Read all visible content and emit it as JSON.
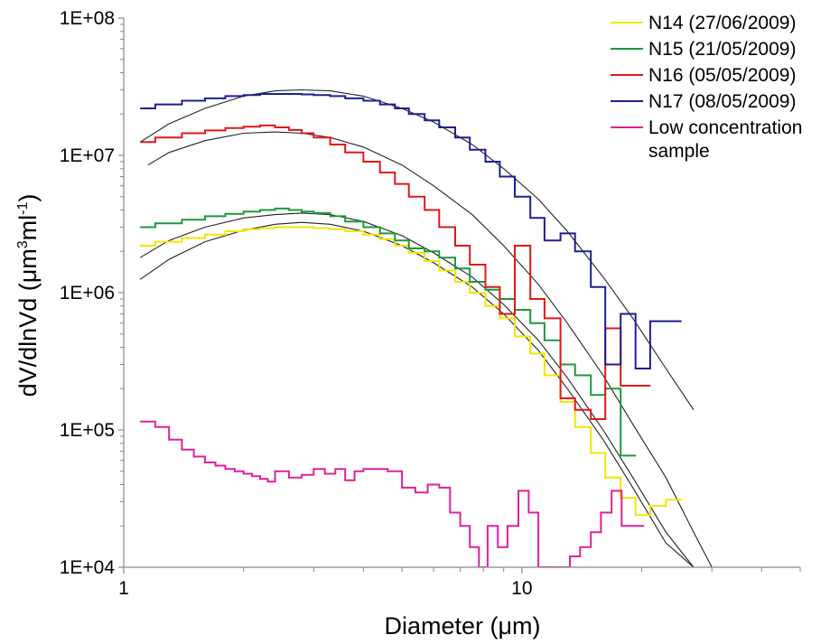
{
  "chart_data": {
    "type": "line",
    "xscale": "log",
    "yscale": "log",
    "xlim": [
      1,
      50
    ],
    "ylim": [
      10000,
      100000000
    ],
    "grid": false,
    "legend_position": "top-right",
    "xlabel": "Diameter (μm)",
    "ylabel_main": "dV/dlnVd (μm",
    "ylabel_sup1": "3",
    "ylabel_mid": "ml",
    "ylabel_sup2": "-1",
    "ylabel_end": ")",
    "x_ticks": [
      {
        "value": 1,
        "label": "1"
      },
      {
        "value": 10,
        "label": "10"
      }
    ],
    "y_ticks": [
      {
        "value": 10000,
        "label": "1E+04"
      },
      {
        "value": 100000,
        "label": "1E+05"
      },
      {
        "value": 1000000,
        "label": "1E+06"
      },
      {
        "value": 10000000,
        "label": "1E+07"
      },
      {
        "value": 100000000,
        "label": "1E+08"
      }
    ],
    "series": [
      {
        "name": "N14 (27/06/2009)",
        "color": "#f2e600",
        "step": true,
        "x": [
          1.1,
          1.2,
          1.4,
          1.6,
          1.8,
          2.0,
          2.2,
          2.4,
          2.6,
          2.8,
          3.0,
          3.3,
          3.6,
          4.0,
          4.4,
          4.8,
          5.2,
          5.7,
          6.2,
          6.8,
          7.4,
          8.1,
          8.8,
          9.6,
          10.5,
          11.4,
          12.5,
          13.6,
          14.9,
          16.2,
          17.7,
          19.3,
          21.0,
          23.0
        ],
        "y": [
          2200000,
          2350000,
          2500000,
          2650000,
          2800000,
          2900000,
          2950000,
          3000000,
          3000000,
          3000000,
          2950000,
          2900000,
          2800000,
          2650000,
          2450000,
          2200000,
          1950000,
          1700000,
          1450000,
          1200000,
          1000000,
          800000,
          650000,
          480000,
          360000,
          250000,
          160000,
          105000,
          68000,
          45000,
          32000,
          24000,
          28000,
          31000
        ]
      },
      {
        "name": "N15 (21/05/2009)",
        "color": "#1a9a3c",
        "step": true,
        "x": [
          1.1,
          1.2,
          1.4,
          1.6,
          1.8,
          2.0,
          2.2,
          2.4,
          2.6,
          2.8,
          3.0,
          3.3,
          3.6,
          4.0,
          4.4,
          4.8,
          5.2,
          5.7,
          6.2,
          6.8,
          7.4,
          8.1,
          8.8,
          9.6,
          10.5,
          11.4,
          12.5,
          13.6,
          14.9,
          16.2,
          17.7
        ],
        "y": [
          3000000,
          3200000,
          3400000,
          3600000,
          3750000,
          3900000,
          4000000,
          4100000,
          4000000,
          3900000,
          3800000,
          3600000,
          3300000,
          3000000,
          2700000,
          2400000,
          2100000,
          2000000,
          1800000,
          1500000,
          1200000,
          1050000,
          900000,
          750000,
          600000,
          450000,
          300000,
          250000,
          180000,
          200000,
          65000
        ]
      },
      {
        "name": "N16 (05/05/2009)",
        "color": "#e01818",
        "step": true,
        "x": [
          1.1,
          1.2,
          1.4,
          1.6,
          1.8,
          2.0,
          2.2,
          2.4,
          2.6,
          2.8,
          3.0,
          3.3,
          3.6,
          4.0,
          4.4,
          4.8,
          5.2,
          5.7,
          6.2,
          6.8,
          7.4,
          8.1,
          8.8,
          9.6,
          10.5,
          11.4,
          12.5,
          13.6,
          14.9,
          16.2,
          17.7,
          19.3
        ],
        "y": [
          12500000,
          13500000,
          14500000,
          15200000,
          15800000,
          16200000,
          16500000,
          16000000,
          15300000,
          14500000,
          13500000,
          12000000,
          10500000,
          9000000,
          7500000,
          6200000,
          5000000,
          4000000,
          3000000,
          2200000,
          1600000,
          1100000,
          700000,
          2200000,
          900000,
          650000,
          170000,
          140000,
          120000,
          550000,
          210000,
          210000
        ]
      },
      {
        "name": "N17 (08/05/2009)",
        "color": "#1e1e96",
        "step": true,
        "x": [
          1.1,
          1.2,
          1.4,
          1.6,
          1.8,
          2.0,
          2.2,
          2.4,
          2.6,
          2.8,
          3.0,
          3.3,
          3.6,
          4.0,
          4.4,
          4.8,
          5.2,
          5.7,
          6.2,
          6.8,
          7.4,
          8.1,
          8.8,
          9.6,
          10.5,
          11.4,
          12.5,
          13.6,
          14.9,
          16.2,
          17.7,
          19.3,
          21.0,
          23.0
        ],
        "y": [
          22000000,
          23500000,
          25000000,
          26000000,
          27000000,
          27500000,
          28000000,
          28000000,
          28000000,
          27800000,
          27500000,
          27000000,
          26000000,
          25000000,
          23500000,
          22000000,
          20000000,
          18000000,
          16000000,
          13500000,
          11000000,
          9000000,
          7000000,
          5000000,
          3500000,
          2400000,
          2700000,
          2000000,
          1100000,
          300000,
          700000,
          280000,
          620000,
          620000
        ]
      },
      {
        "name": "Low concentration sample",
        "color": "#e0209a",
        "step": true,
        "x": [
          1.1,
          1.2,
          1.3,
          1.4,
          1.5,
          1.6,
          1.7,
          1.8,
          1.9,
          2.0,
          2.1,
          2.2,
          2.3,
          2.4,
          2.6,
          2.8,
          3.0,
          3.2,
          3.4,
          3.6,
          3.8,
          4.0,
          4.3,
          4.6,
          5.0,
          5.4,
          5.8,
          6.2,
          6.6,
          7.0,
          7.4,
          7.8,
          8.2,
          8.7,
          9.2,
          9.8,
          10.4,
          11.0,
          11.7,
          12.4,
          13.2,
          14.0,
          14.9,
          15.8,
          16.8,
          17.8,
          19.0
        ],
        "y": [
          115000,
          105000,
          85000,
          72000,
          64000,
          58000,
          55000,
          52000,
          50000,
          48000,
          46000,
          44000,
          42000,
          50000,
          45000,
          47000,
          52000,
          48000,
          52000,
          43000,
          50000,
          52000,
          52000,
          50000,
          38000,
          35000,
          40000,
          38000,
          25000,
          20000,
          14000,
          9000,
          20000,
          14000,
          20000,
          36000,
          25000,
          9000,
          8000,
          10000,
          12000,
          14000,
          18000,
          25000,
          36000,
          20000,
          20000
        ]
      }
    ],
    "fit_curves": [
      {
        "color": "#222222",
        "x": [
          1.1,
          1.3,
          1.6,
          2.0,
          2.4,
          2.8,
          3.3,
          4.0,
          5.0,
          6.0,
          7.5,
          9.0,
          11.0,
          13.0,
          16.0,
          19.0,
          23.0,
          27.0
        ],
        "y": [
          12500000,
          17000000,
          22000000,
          27000000,
          29500000,
          30000000,
          29500000,
          27000000,
          22000000,
          17500000,
          12000000,
          8000000,
          4800000,
          2800000,
          1300000,
          650000,
          280000,
          140000
        ]
      },
      {
        "color": "#222222",
        "x": [
          1.15,
          1.3,
          1.6,
          2.0,
          2.4,
          2.8,
          3.3,
          4.0,
          5.0,
          6.0,
          7.5,
          9.0,
          11.0,
          13.0,
          16.0,
          19.0,
          23.0,
          27.0,
          30.0
        ],
        "y": [
          8500000,
          10500000,
          12800000,
          14500000,
          14800000,
          14500000,
          13500000,
          11500000,
          8500000,
          6000000,
          3700000,
          2200000,
          1150000,
          600000,
          250000,
          110000,
          45000,
          18000,
          10000
        ]
      },
      {
        "color": "#222222",
        "x": [
          1.1,
          1.3,
          1.6,
          2.0,
          2.4,
          2.8,
          3.3,
          4.0,
          5.0,
          6.0,
          7.5,
          9.0,
          11.0,
          13.0,
          16.0,
          19.0,
          23.0,
          27.0,
          30.0
        ],
        "y": [
          1800000,
          2400000,
          3000000,
          3500000,
          3700000,
          3800000,
          3700000,
          3300000,
          2600000,
          1950000,
          1300000,
          820000,
          450000,
          240000,
          100000,
          45000,
          18000,
          10000,
          7000
        ]
      },
      {
        "color": "#222222",
        "x": [
          1.1,
          1.3,
          1.6,
          2.0,
          2.4,
          2.8,
          3.3,
          4.0,
          5.0,
          6.0,
          7.5,
          9.0,
          11.0,
          13.0,
          16.0,
          19.0,
          23.0,
          27.0,
          30.0
        ],
        "y": [
          1250000,
          1750000,
          2350000,
          2850000,
          3150000,
          3250000,
          3150000,
          2800000,
          2200000,
          1650000,
          1100000,
          700000,
          380000,
          200000,
          85000,
          38000,
          15000,
          8500,
          6000
        ]
      }
    ]
  }
}
